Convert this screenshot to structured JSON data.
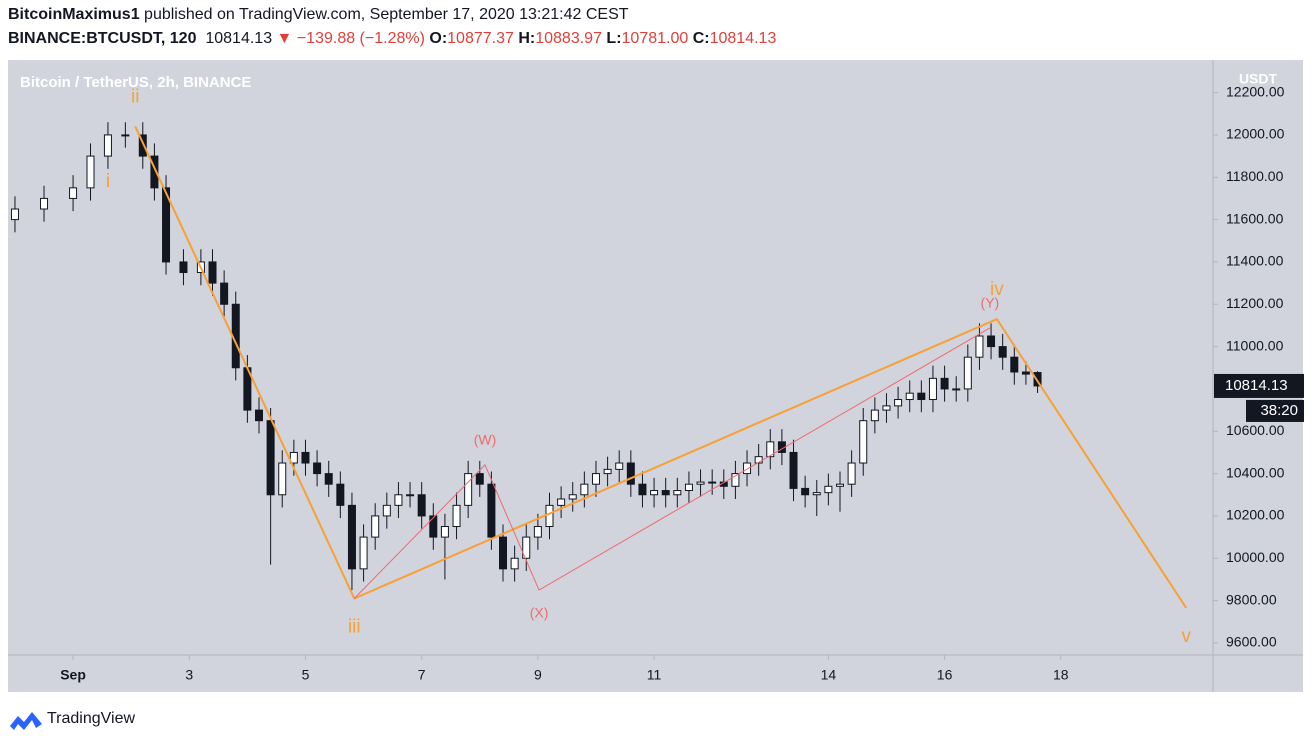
{
  "header": {
    "author": "BitcoinMaximus1",
    "published": "published on TradingView.com, September 17, 2020 13:21:42 CEST",
    "symbol": "BINANCE:BTCUSDT, 120",
    "last": "10814.13",
    "change": "▼ −139.88 (−1.28%)",
    "ohlc": [
      {
        "key": "O:",
        "value": "10877.37"
      },
      {
        "key": "H:",
        "value": "10883.97"
      },
      {
        "key": "L:",
        "value": "10781.00"
      },
      {
        "key": "C:",
        "value": "10814.13"
      }
    ]
  },
  "chart_data": {
    "type": "candlestick",
    "title": "Bitcoin / TetherUS, 2h, BINANCE",
    "y_axis_label": "USDT",
    "last_price_label": "10814.13",
    "countdown": "38:20",
    "colors": {
      "up": "#ffffff",
      "down": "#131722",
      "wick": "#131722"
    },
    "xlim": [
      -0.12,
      20.62
    ],
    "ylim": [
      9543,
      12354
    ],
    "xticks": [
      {
        "value": 1,
        "label": "Sep"
      },
      3,
      5,
      7,
      9,
      11,
      14,
      16,
      18
    ],
    "yticks": [
      {
        "value": 9600,
        "label": "9600.00"
      },
      {
        "value": 9800,
        "label": "9800.00"
      },
      {
        "value": 10000,
        "label": "10000.00"
      },
      {
        "value": 10200,
        "label": "10200.00"
      },
      {
        "value": 10400,
        "label": "10400.00"
      },
      {
        "value": 10600,
        "label": "10600.00"
      },
      {
        "value": 10800,
        "label": "10800.00"
      },
      {
        "value": 11000,
        "label": "11000.00"
      },
      {
        "value": 11200,
        "label": "11200.00"
      },
      {
        "value": 11400,
        "label": "11400.00"
      },
      {
        "value": 11600,
        "label": "11600.00"
      },
      {
        "value": 11800,
        "label": "11800.00"
      },
      {
        "value": 12000,
        "label": "12000.00"
      },
      {
        "value": 12200,
        "label": "12200.00"
      }
    ],
    "x": [
      0,
      0.5,
      1,
      1.3,
      1.6,
      1.9,
      2.2,
      2.4,
      2.6,
      2.9,
      3.2,
      3.4,
      3.6,
      3.8,
      4,
      4.2,
      4.4,
      4.6,
      4.8,
      5,
      5.2,
      5.4,
      5.6,
      5.8,
      6,
      6.2,
      6.4,
      6.6,
      6.8,
      7,
      7.2,
      7.4,
      7.6,
      7.8,
      8,
      8.2,
      8.4,
      8.6,
      8.8,
      9,
      9.2,
      9.4,
      9.6,
      9.8,
      10,
      10.2,
      10.4,
      10.6,
      10.8,
      11,
      11.2,
      11.4,
      11.6,
      11.8,
      12,
      12.2,
      12.4,
      12.6,
      12.8,
      13,
      13.2,
      13.4,
      13.6,
      13.8,
      14,
      14.2,
      14.4,
      14.6,
      14.8,
      15,
      15.2,
      15.4,
      15.6,
      15.8,
      16,
      16.2,
      16.4,
      16.6,
      16.8,
      17,
      17.2,
      17.4,
      17.6
    ],
    "open": [
      11600,
      11650,
      11700,
      11750,
      11900,
      12000,
      12000,
      11900,
      11750,
      11400,
      11350,
      11400,
      11300,
      11200,
      10900,
      10700,
      10650,
      10300,
      10450,
      10500,
      10450,
      10400,
      10350,
      10250,
      9950,
      10100,
      10200,
      10250,
      10300,
      10300,
      10200,
      10100,
      10150,
      10250,
      10400,
      10350,
      10100,
      9950,
      10000,
      10100,
      10150,
      10250,
      10280,
      10300,
      10350,
      10400,
      10420,
      10450,
      10350,
      10300,
      10320,
      10300,
      10320,
      10350,
      10360,
      10360,
      10340,
      10400,
      10450,
      10480,
      10550,
      10500,
      10330,
      10300,
      10310,
      10340,
      10350,
      10450,
      10650,
      10700,
      10720,
      10750,
      10780,
      10750,
      10850,
      10800,
      10800,
      10950,
      11050,
      11000,
      10950,
      10880,
      10877.37
    ],
    "high": [
      11710,
      11760,
      11810,
      11960,
      12060,
      12060,
      12060,
      11960,
      11810,
      11460,
      11460,
      11460,
      11360,
      11260,
      10960,
      10760,
      10710,
      10510,
      10560,
      10560,
      10510,
      10460,
      10410,
      10310,
      10160,
      10260,
      10310,
      10360,
      10360,
      10360,
      10260,
      10210,
      10310,
      10460,
      10460,
      10410,
      10160,
      10060,
      10160,
      10210,
      10310,
      10340,
      10360,
      10410,
      10460,
      10480,
      10510,
      10510,
      10410,
      10380,
      10380,
      10380,
      10410,
      10420,
      10420,
      10420,
      10460,
      10510,
      10540,
      10610,
      10610,
      10560,
      10390,
      10370,
      10400,
      10410,
      10510,
      10710,
      10760,
      10780,
      10810,
      10840,
      10840,
      10910,
      10910,
      10860,
      11010,
      11110,
      11110,
      11060,
      11010,
      10930,
      10883.97
    ],
    "low": [
      11540,
      11590,
      11640,
      11690,
      11840,
      11940,
      11840,
      11690,
      11340,
      11290,
      11290,
      11240,
      11140,
      10840,
      10640,
      10590,
      9970,
      10240,
      10390,
      10390,
      10340,
      10290,
      10190,
      9850,
      9890,
      10040,
      10140,
      10190,
      10240,
      10140,
      10040,
      9900,
      10090,
      10190,
      10290,
      10040,
      9890,
      9890,
      9940,
      10040,
      10090,
      10190,
      10220,
      10240,
      10290,
      10340,
      10360,
      10290,
      10240,
      10240,
      10240,
      10240,
      10260,
      10290,
      10300,
      10280,
      10280,
      10340,
      10390,
      10420,
      10440,
      10270,
      10240,
      10200,
      10250,
      10220,
      10290,
      10390,
      10590,
      10640,
      10660,
      10690,
      10690,
      10690,
      10740,
      10740,
      10740,
      10890,
      10940,
      10890,
      10820,
      10820,
      10781.0
    ],
    "close": [
      11650,
      11700,
      11750,
      11900,
      12000,
      12000,
      11900,
      11750,
      11400,
      11350,
      11400,
      11300,
      11200,
      10900,
      10700,
      10650,
      10300,
      10450,
      10500,
      10450,
      10400,
      10350,
      10250,
      9950,
      10100,
      10200,
      10250,
      10300,
      10300,
      10200,
      10100,
      10150,
      10250,
      10400,
      10350,
      10100,
      9950,
      10000,
      10100,
      10150,
      10250,
      10280,
      10300,
      10350,
      10400,
      10420,
      10450,
      10350,
      10300,
      10320,
      10300,
      10320,
      10350,
      10360,
      10360,
      10340,
      10400,
      10450,
      10480,
      10550,
      10500,
      10330,
      10300,
      10310,
      10340,
      10350,
      10450,
      10650,
      10700,
      10720,
      10750,
      10780,
      10750,
      10850,
      10800,
      10800,
      10950,
      11050,
      11000,
      10950,
      10880,
      10870,
      10814.13
    ],
    "lines": [
      {
        "color": "#f7a035",
        "x": [
          2.07,
          5.84,
          16.9,
          20.16
        ],
        "y": [
          12040,
          9810,
          11130,
          9765
        ],
        "labels": [
          "ii",
          "iii",
          "iv",
          "v"
        ]
      },
      {
        "color": "#f06a6a",
        "x": [
          5.84,
          8.09,
          9.02,
          16.78
        ],
        "y": [
          9810,
          10441,
          9850,
          11088
        ],
        "labels": [
          null,
          "(W)",
          "(X)",
          "(Y)"
        ]
      }
    ],
    "annotations": [
      {
        "text": "i",
        "x": 1.6,
        "y": 11778,
        "color": "#f7a035"
      }
    ]
  },
  "footer": {
    "brand": "TradingView"
  }
}
